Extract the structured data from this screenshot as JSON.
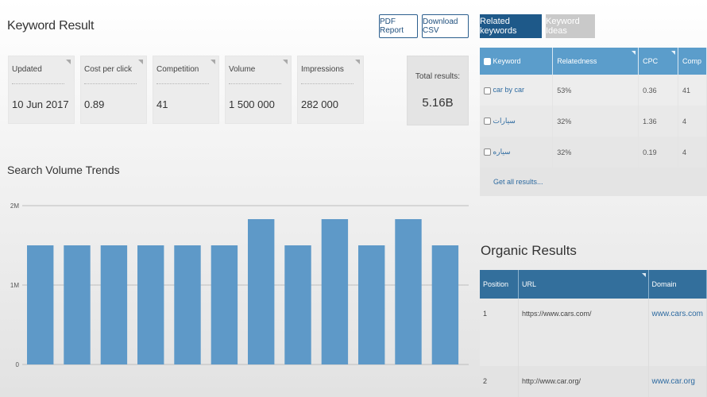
{
  "header": {
    "title": "Keyword Result",
    "pdf_button": "PDF Report",
    "csv_button": "Download CSV",
    "tab_related": "Related keywords",
    "tab_ideas": "Keyword Ideas"
  },
  "metrics": [
    {
      "label": "Updated",
      "value": "10 Jun 2017"
    },
    {
      "label": "Cost per click",
      "value": "0.89"
    },
    {
      "label": "Competition",
      "value": "41"
    },
    {
      "label": "Volume",
      "value": "1 500 000"
    },
    {
      "label": "Impressions",
      "value": "282 000"
    }
  ],
  "total": {
    "label": "Total results:",
    "value": "5.16B"
  },
  "trends": {
    "title": "Search Volume Trends"
  },
  "chart_data": {
    "type": "bar",
    "title": "Search Volume Trends",
    "xlabel": "",
    "ylabel": "",
    "categories": [
      "",
      "",
      "",
      "",
      "",
      "",
      "",
      "",
      "",
      "",
      "",
      ""
    ],
    "values": [
      1500000,
      1500000,
      1500000,
      1500000,
      1500000,
      1500000,
      1830000,
      1500000,
      1830000,
      1500000,
      1830000,
      1500000
    ],
    "ylim": [
      0,
      2000000
    ],
    "yticks": [
      {
        "value": 0,
        "label": "0"
      },
      {
        "value": 1000000,
        "label": "1M"
      },
      {
        "value": 2000000,
        "label": "2M"
      }
    ],
    "grid": true,
    "bar_color": "#5e99c8"
  },
  "keywords": {
    "headers": [
      "Keyword",
      "Relatedness",
      "CPC",
      "Comp"
    ],
    "rows": [
      {
        "keyword": "car by car",
        "relatedness": "53%",
        "cpc": "0.36",
        "comp": "41"
      },
      {
        "keyword": "سيارات",
        "relatedness": "32%",
        "cpc": "1.36",
        "comp": "4"
      },
      {
        "keyword": "سياره",
        "relatedness": "32%",
        "cpc": "0.19",
        "comp": "4"
      }
    ],
    "get_all": "Get all results..."
  },
  "organic": {
    "title": "Organic Results",
    "headers": [
      "Position",
      "URL",
      "Domain"
    ],
    "rows": [
      {
        "position": "1",
        "url": "https://www.cars.com/",
        "domain": "www.cars.com"
      },
      {
        "position": "2",
        "url": "http://www.car.org/",
        "domain": "www.car.org"
      }
    ]
  },
  "colors": {
    "accent": "#1e5989",
    "table_header": "#5b9dcb",
    "organic_header": "#336f9c",
    "bar": "#5e99c8",
    "link": "#2d6aa0"
  }
}
